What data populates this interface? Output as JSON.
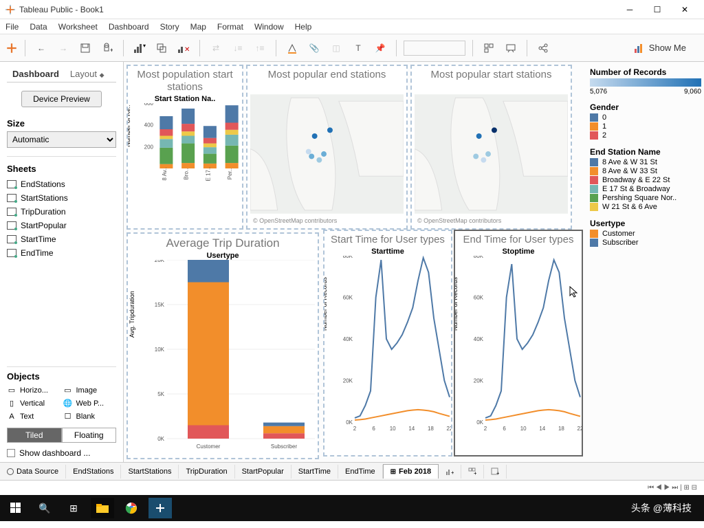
{
  "window": {
    "title": "Tableau Public - Book1"
  },
  "menus": [
    "File",
    "Data",
    "Worksheet",
    "Dashboard",
    "Story",
    "Map",
    "Format",
    "Window",
    "Help"
  ],
  "toolbar": {
    "showme": "Show Me"
  },
  "sidebar": {
    "tabs": {
      "dashboard": "Dashboard",
      "layout": "Layout"
    },
    "device_preview": "Device Preview",
    "size_label": "Size",
    "size_value": "Automatic",
    "sheets_label": "Sheets",
    "sheets": [
      "EndStations",
      "StartStations",
      "TripDuration",
      "StartPopular",
      "StartTime",
      "EndTime"
    ],
    "objects_label": "Objects",
    "objects": [
      "Horizo...",
      "Image",
      "Vertical",
      "Web P...",
      "Text",
      "Blank"
    ],
    "mode_tiled": "Tiled",
    "mode_floating": "Floating",
    "show_dashboard": "Show dashboard ..."
  },
  "vizzes": {
    "v1": {
      "title": "Most population start stations",
      "sub": "Start Station Na..",
      "ylabel": "Number of Re..",
      "ylim": [
        0,
        600
      ],
      "yticks": [
        200,
        400,
        600
      ],
      "categories": [
        "8 Av..",
        "Bro..",
        "E 17..",
        "Per.."
      ],
      "stacks": {
        "colors": [
          "#f28e2b",
          "#59a14f",
          "#76b7b2",
          "#edc948",
          "#e15759",
          "#4e79a7"
        ],
        "data": [
          [
            40,
            150,
            80,
            30,
            60,
            120
          ],
          [
            50,
            180,
            70,
            40,
            70,
            140
          ],
          [
            45,
            90,
            60,
            35,
            50,
            110
          ],
          [
            50,
            160,
            100,
            45,
            65,
            160
          ]
        ]
      }
    },
    "v2": {
      "title": "Most popular end stations",
      "attrib": "© OpenStreetMap contributors",
      "points": [
        [
          0.42,
          0.35,
          "#2171b5"
        ],
        [
          0.52,
          0.3,
          "#2171b5"
        ],
        [
          0.4,
          0.52,
          "#6baed6"
        ],
        [
          0.45,
          0.55,
          "#9ecae1"
        ],
        [
          0.48,
          0.5,
          "#6baed6"
        ],
        [
          0.38,
          0.48,
          "#c6dbef"
        ]
      ]
    },
    "v3": {
      "title": "Most popular start stations",
      "attrib": "© OpenStreetMap contributors",
      "points": [
        [
          0.42,
          0.35,
          "#2171b5"
        ],
        [
          0.52,
          0.3,
          "#08306b"
        ],
        [
          0.4,
          0.52,
          "#9ecae1"
        ],
        [
          0.45,
          0.55,
          "#c6dbef"
        ],
        [
          0.48,
          0.5,
          "#9ecae1"
        ]
      ]
    },
    "v4": {
      "title": "Average Trip Duration",
      "sub": "Usertype",
      "ylabel": "Avg. Tripduration",
      "ylim": [
        0,
        20000
      ],
      "yticks": [
        "0K",
        "5K",
        "10K",
        "15K",
        "20K"
      ],
      "categories": [
        "Customer",
        "Subscriber"
      ],
      "bars": [
        {
          "segments": [
            {
              "c": "#e15759",
              "v": 1500
            },
            {
              "c": "#f28e2b",
              "v": 16000
            },
            {
              "c": "#4e79a7",
              "v": 3500
            }
          ]
        },
        {
          "segments": [
            {
              "c": "#e15759",
              "v": 600
            },
            {
              "c": "#f28e2b",
              "v": 800
            },
            {
              "c": "#4e79a7",
              "v": 400
            }
          ]
        }
      ]
    },
    "v5": {
      "title": "Start Time for User types",
      "sub": "Starttime",
      "ylabel": "Number of Records",
      "ylim": [
        0,
        80000
      ],
      "yticks": [
        "0K",
        "20K",
        "40K",
        "60K",
        "80K"
      ],
      "xticks": [
        2,
        6,
        10,
        14,
        18,
        22
      ],
      "series": [
        {
          "c": "#4e79a7",
          "pts": [
            2000,
            3000,
            8000,
            15000,
            60000,
            78000,
            40000,
            35000,
            38000,
            42000,
            48000,
            55000,
            68000,
            79000,
            72000,
            50000,
            35000,
            20000,
            12000
          ]
        },
        {
          "c": "#f28e2b",
          "pts": [
            1000,
            1200,
            1500,
            2000,
            2500,
            3000,
            3500,
            4000,
            4500,
            5000,
            5500,
            5800,
            6000,
            5800,
            5500,
            5000,
            4200,
            3500,
            2800
          ]
        }
      ]
    },
    "v6": {
      "title": "End Time for User types",
      "sub": "Stoptime",
      "ylabel": "Number of Records",
      "ylim": [
        0,
        80000
      ],
      "yticks": [
        "0K",
        "20K",
        "40K",
        "60K",
        "80K"
      ],
      "xticks": [
        2,
        6,
        10,
        14,
        18,
        22
      ],
      "series": [
        {
          "c": "#4e79a7",
          "pts": [
            2000,
            3000,
            8000,
            15000,
            60000,
            76000,
            40000,
            35000,
            38000,
            42000,
            48000,
            55000,
            68000,
            78000,
            72000,
            50000,
            35000,
            20000,
            12000
          ]
        },
        {
          "c": "#f28e2b",
          "pts": [
            1000,
            1200,
            1500,
            2000,
            2500,
            3000,
            3500,
            4000,
            4500,
            5000,
            5500,
            5800,
            6000,
            5800,
            5500,
            5000,
            4200,
            3500,
            2800
          ]
        }
      ]
    }
  },
  "legends": {
    "records": {
      "title": "Number of Records",
      "min": "5,076",
      "max": "9,060"
    },
    "gender": {
      "title": "Gender",
      "items": [
        {
          "c": "#4e79a7",
          "l": "0"
        },
        {
          "c": "#f28e2b",
          "l": "1"
        },
        {
          "c": "#e15759",
          "l": "2"
        }
      ]
    },
    "endstation": {
      "title": "End Station Name",
      "items": [
        {
          "c": "#4e79a7",
          "l": "8 Ave & W 31 St"
        },
        {
          "c": "#f28e2b",
          "l": "8 Ave & W 33 St"
        },
        {
          "c": "#e15759",
          "l": "Broadway & E 22 St"
        },
        {
          "c": "#76b7b2",
          "l": "E 17 St & Broadway"
        },
        {
          "c": "#59a14f",
          "l": "Pershing Square Nor.."
        },
        {
          "c": "#edc948",
          "l": "W 21 St & 6 Ave"
        }
      ]
    },
    "usertype": {
      "title": "Usertype",
      "items": [
        {
          "c": "#f28e2b",
          "l": "Customer"
        },
        {
          "c": "#4e79a7",
          "l": "Subscriber"
        }
      ]
    }
  },
  "bottomtabs": {
    "datasource": "Data Source",
    "tabs": [
      "EndStations",
      "StartStations",
      "TripDuration",
      "StartPopular",
      "StartTime",
      "EndTime"
    ],
    "active": "Feb 2018"
  },
  "watermark": "头条 @薄科技"
}
